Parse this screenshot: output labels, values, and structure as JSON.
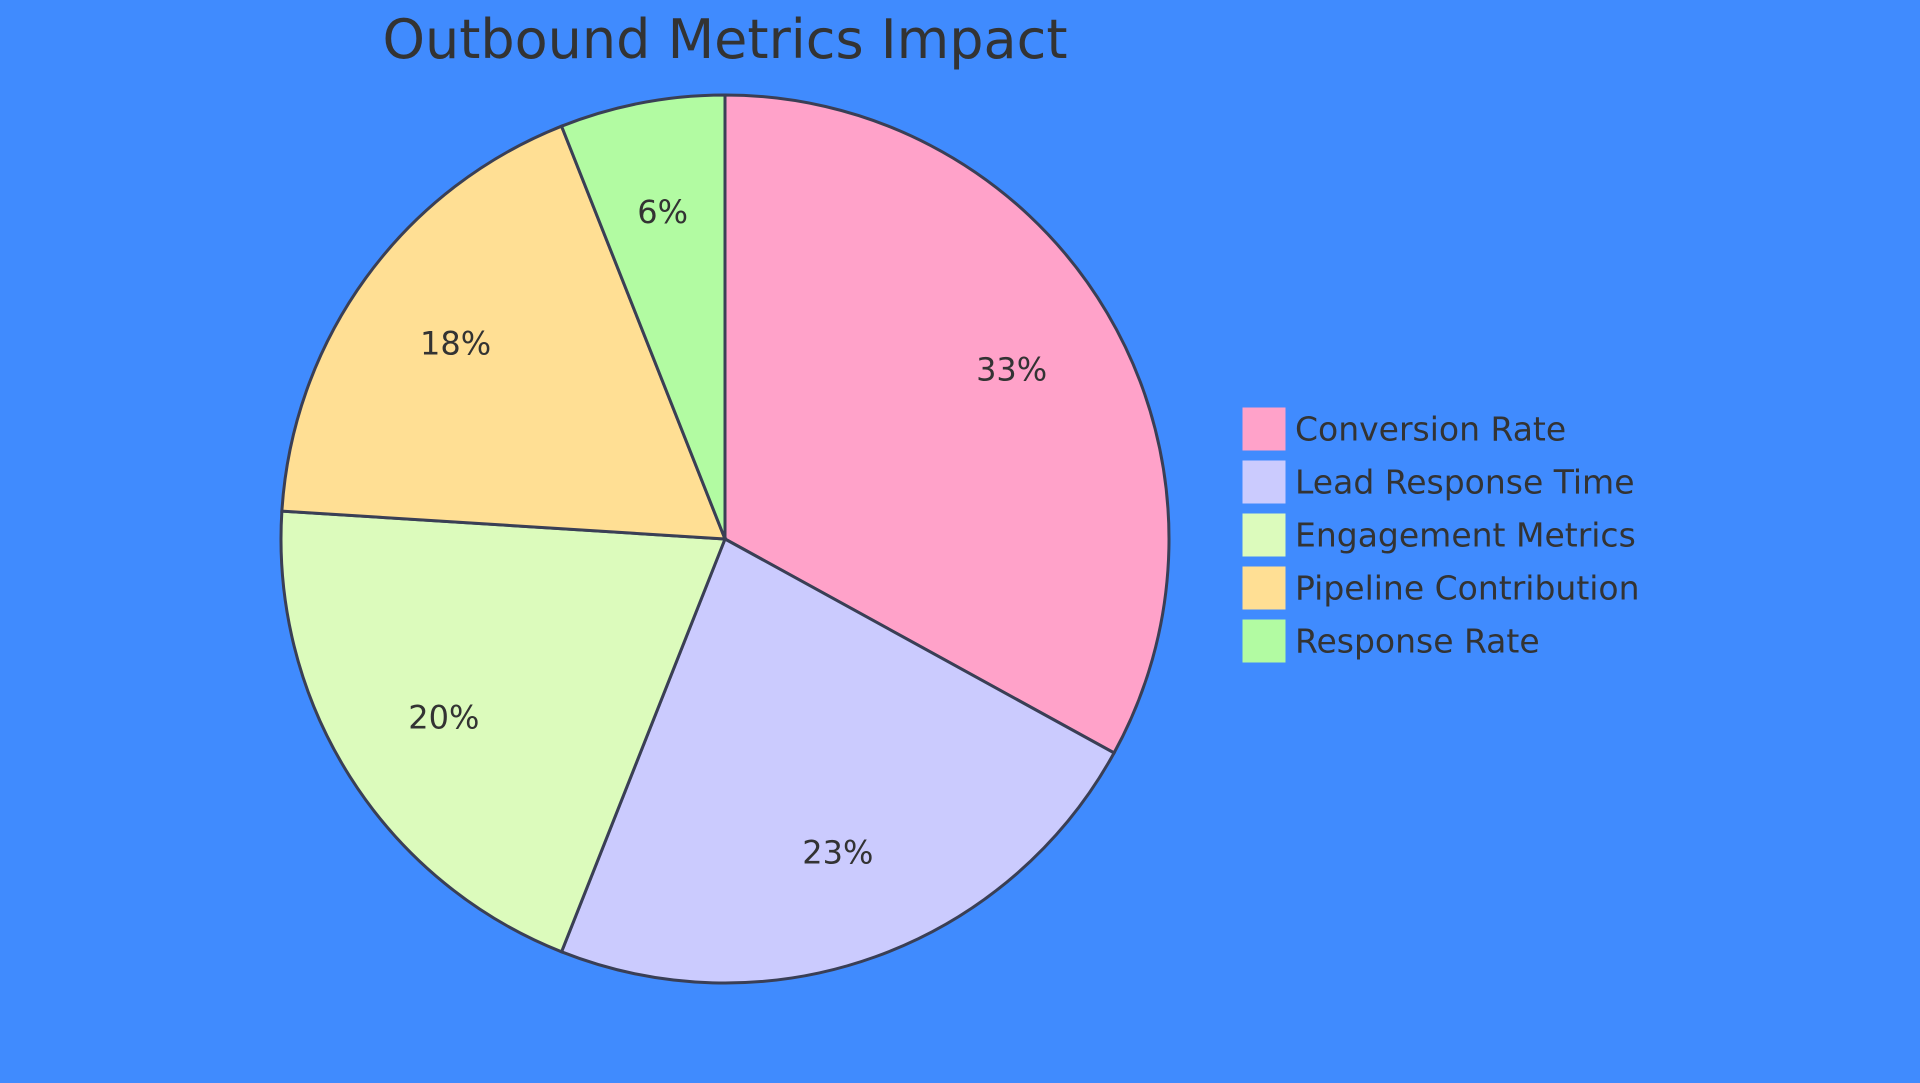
{
  "chart_data": {
    "type": "pie",
    "title": "Outbound Metrics Impact",
    "slices": [
      {
        "label": "Conversion Rate",
        "value": 33,
        "display": "33%",
        "color": "#ffa2c9"
      },
      {
        "label": "Lead Response Time",
        "value": 23,
        "display": "23%",
        "color": "#cbcbfe"
      },
      {
        "label": "Engagement Metrics",
        "value": 20,
        "display": "20%",
        "color": "#dcfbbc"
      },
      {
        "label": "Pipeline Contribution",
        "value": 18,
        "display": "18%",
        "color": "#ffdf94"
      },
      {
        "label": "Response Rate",
        "value": 6,
        "display": "6%",
        "color": "#b2fba2"
      }
    ],
    "legend_position": "right"
  },
  "colors": {
    "background": "#408bfe",
    "text": "#333333",
    "stroke": "#3a3f55"
  }
}
